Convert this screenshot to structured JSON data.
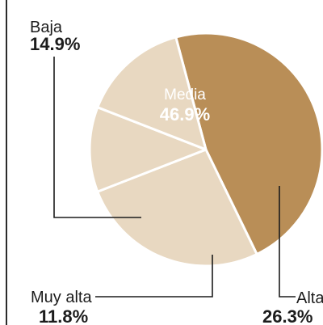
{
  "chart_data": {
    "type": "pie",
    "slices": [
      {
        "label": "Media",
        "value": 46.9,
        "value_text": "46.9%",
        "color": "#b98e57"
      },
      {
        "label": "Alta",
        "value": 26.3,
        "value_text": "26.3%",
        "color": "#e8d8c1"
      },
      {
        "label": "Muy alta",
        "value": 11.8,
        "value_text": "11.8%",
        "color": "#e8d8c1"
      },
      {
        "label": "Baja",
        "value": 14.9,
        "value_text": "14.9%",
        "color": "#e8d8c1"
      }
    ],
    "slice_border_color": "#ffffff",
    "label_color": "#1c1c1c",
    "inner_label_color": "#ffffff"
  }
}
